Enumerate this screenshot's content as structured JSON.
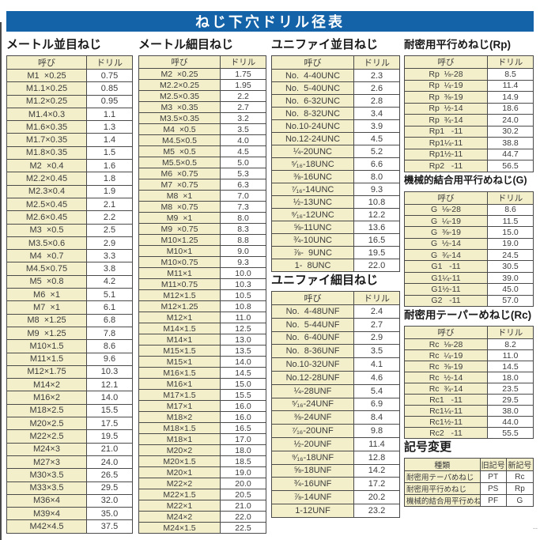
{
  "title": "ねじ下穴ドリル径表",
  "footer_mark": "--",
  "colors": {
    "title_bar_bg": "#1463a8",
    "title_text": "#ffffff",
    "cell_cream": "#f3efca",
    "cell_white": "#ffffff",
    "border": "#4a4a4a",
    "text": "#3c3c3c"
  },
  "sections": {
    "metric_coarse": {
      "title": "メートル並目ねじ",
      "headers": [
        "呼び",
        "ドリル"
      ],
      "rows": [
        [
          "M1  ×0.25",
          "0.75"
        ],
        [
          "M1.1×0.25",
          "0.85"
        ],
        [
          "M1.2×0.25",
          "0.95"
        ],
        [
          "M1.4×0.3",
          "1.1"
        ],
        [
          "M1.6×0.35",
          "1.3"
        ],
        [
          "M1.7×0.35",
          "1.4"
        ],
        [
          "M1.8×0.35",
          "1.5"
        ],
        [
          "M2  ×0.4",
          "1.6"
        ],
        [
          "M2.2×0.45",
          "1.8"
        ],
        [
          "M2.3×0.4",
          "1.9"
        ],
        [
          "M2.5×0.45",
          "2.1"
        ],
        [
          "M2.6×0.45",
          "2.2"
        ],
        [
          "M3  ×0.5",
          "2.5"
        ],
        [
          "M3.5×0.6",
          "2.9"
        ],
        [
          "M4  ×0.7",
          "3.3"
        ],
        [
          "M4.5×0.75",
          "3.8"
        ],
        [
          "M5  ×0.8",
          "4.2"
        ],
        [
          "M6  ×1",
          "5.1"
        ],
        [
          "M7  ×1",
          "6.1"
        ],
        [
          "M8  ×1.25",
          "6.8"
        ],
        [
          "M9  ×1.25",
          "7.8"
        ],
        [
          "M10×1.5",
          "8.6"
        ],
        [
          "M11×1.5",
          "9.6"
        ],
        [
          "M12×1.75",
          "10.3"
        ],
        [
          "M14×2",
          "12.1"
        ],
        [
          "M16×2",
          "14.0"
        ],
        [
          "M18×2.5",
          "15.5"
        ],
        [
          "M20×2.5",
          "17.5"
        ],
        [
          "M22×2.5",
          "19.5"
        ],
        [
          "M24×3",
          "21.0"
        ],
        [
          "M27×3",
          "24.0"
        ],
        [
          "M30×3.5",
          "26.5"
        ],
        [
          "M33×3.5",
          "29.5"
        ],
        [
          "M36×4",
          "32.0"
        ],
        [
          "M39×4",
          "35.0"
        ],
        [
          "M42×4.5",
          "37.5"
        ]
      ]
    },
    "metric_fine": {
      "title": "メートル細目ねじ",
      "headers": [
        "呼び",
        "ドリル"
      ],
      "rows": [
        [
          "M2  ×0.25",
          "1.75"
        ],
        [
          "M2.2×0.25",
          "1.95"
        ],
        [
          "M2.5×0.35",
          "2.2"
        ],
        [
          "M3  ×0.35",
          "2.7"
        ],
        [
          "M3.5×0.35",
          "3.2"
        ],
        [
          "M4  ×0.5",
          "3.5"
        ],
        [
          "M4.5×0.5",
          "4.0"
        ],
        [
          "M5  ×0.5",
          "4.5"
        ],
        [
          "M5.5×0.5",
          "5.0"
        ],
        [
          "M6  ×0.75",
          "5.3"
        ],
        [
          "M7  ×0.75",
          "6.3"
        ],
        [
          "M8  ×1",
          "7.0"
        ],
        [
          "M8  ×0.75",
          "7.3"
        ],
        [
          "M9  ×1",
          "8.0"
        ],
        [
          "M9  ×0.75",
          "8.3"
        ],
        [
          "M10×1.25",
          "8.8"
        ],
        [
          "M10×1",
          "9.0"
        ],
        [
          "M10×0.75",
          "9.3"
        ],
        [
          "M11×1",
          "10.0"
        ],
        [
          "M11×0.75",
          "10.3"
        ],
        [
          "M12×1.5",
          "10.5"
        ],
        [
          "M12×1.25",
          "10.8"
        ],
        [
          "M12×1",
          "11.0"
        ],
        [
          "M14×1.5",
          "12.5"
        ],
        [
          "M14×1",
          "13.0"
        ],
        [
          "M15×1.5",
          "13.5"
        ],
        [
          "M15×1",
          "14.0"
        ],
        [
          "M16×1.5",
          "14.5"
        ],
        [
          "M16×1",
          "15.0"
        ],
        [
          "M17×1.5",
          "15.5"
        ],
        [
          "M17×1",
          "16.0"
        ],
        [
          "M18×2",
          "16.0"
        ],
        [
          "M18×1.5",
          "16.5"
        ],
        [
          "M18×1",
          "17.0"
        ],
        [
          "M20×2",
          "18.0"
        ],
        [
          "M20×1.5",
          "18.5"
        ],
        [
          "M20×1",
          "19.0"
        ],
        [
          "M22×2",
          "20.0"
        ],
        [
          "M22×1.5",
          "20.5"
        ],
        [
          "M22×1",
          "21.0"
        ],
        [
          "M24×2",
          "22.0"
        ],
        [
          "M24×1.5",
          "22.5"
        ]
      ]
    },
    "unified_coarse": {
      "title": "ユニファイ並目ねじ",
      "headers": [
        "呼び",
        "ドリル"
      ],
      "rows": [
        [
          "No.  4-40UNC",
          "2.3"
        ],
        [
          "No.  5-40UNC",
          "2.6"
        ],
        [
          "No.  6-32UNC",
          "2.8"
        ],
        [
          "No.  8-32UNC",
          "3.4"
        ],
        [
          "No.10-24UNC",
          "3.9"
        ],
        [
          "No.12-24UNC",
          "4.5"
        ],
        [
          "¼-20UNC",
          "5.2"
        ],
        [
          "⁵⁄₁₆-18UNC",
          "6.6"
        ],
        [
          "⅜-16UNC",
          "8.0"
        ],
        [
          "⁷⁄₁₆-14UNC",
          "9.3"
        ],
        [
          "½-13UNC",
          "10.8"
        ],
        [
          "⁹⁄₁₆-12UNC",
          "12.2"
        ],
        [
          "⅝-11UNC",
          "13.6"
        ],
        [
          "¾-10UNC",
          "16.5"
        ],
        [
          "⅞-  9UNC",
          "19.5"
        ],
        [
          "1-  8UNC",
          "22.0"
        ]
      ]
    },
    "unified_fine": {
      "title": "ユニファイ細目ねじ",
      "headers": [
        "呼び",
        "ドリル"
      ],
      "rows": [
        [
          "No.  4-48UNF",
          "2.4"
        ],
        [
          "No.  5-44UNF",
          "2.7"
        ],
        [
          "No.  6-40UNF",
          "2.9"
        ],
        [
          "No.  8-36UNF",
          "3.5"
        ],
        [
          "No.10-32UNF",
          "4.1"
        ],
        [
          "No.12-28UNF",
          "4.6"
        ],
        [
          "¼-28UNF",
          "5.4"
        ],
        [
          "⁵⁄₁₆-24UNF",
          "6.9"
        ],
        [
          "⅜-24UNF",
          "8.4"
        ],
        [
          "⁷⁄₁₆-20UNF",
          "9.8"
        ],
        [
          "½-20UNF",
          "11.4"
        ],
        [
          "⁹⁄₁₆-18UNF",
          "12.8"
        ],
        [
          "⅝-18UNF",
          "14.2"
        ],
        [
          "¾-16UNF",
          "17.2"
        ],
        [
          "⅞-14UNF",
          "20.2"
        ],
        [
          "1-12UNF",
          "23.2"
        ]
      ]
    },
    "rp": {
      "title": "耐密用平行めねじ(Rp)",
      "headers": [
        "呼び",
        "ドリル"
      ],
      "rows": [
        [
          "Rp  ⅛-28",
          "8.5"
        ],
        [
          "Rp  ¼-19",
          "11.4"
        ],
        [
          "Rp  ⅜-19",
          "14.9"
        ],
        [
          "Rp  ½-14",
          "18.6"
        ],
        [
          "Rp  ¾-14",
          "24.0"
        ],
        [
          "Rp1   -11",
          "30.2"
        ],
        [
          "Rp1¼-11",
          "38.8"
        ],
        [
          "Rp1½-11",
          "44.7"
        ],
        [
          "Rp2   -11",
          "56.5"
        ]
      ]
    },
    "g": {
      "title": "機械的結合用平行めねじ(G)",
      "headers": [
        "呼び",
        "ドリル"
      ],
      "rows": [
        [
          "G  ⅛-28",
          "8.6"
        ],
        [
          "G  ¼-19",
          "11.5"
        ],
        [
          "G  ⅜-19",
          "15.0"
        ],
        [
          "G  ½-14",
          "19.0"
        ],
        [
          "G  ¾-14",
          "24.5"
        ],
        [
          "G1   -11",
          "30.5"
        ],
        [
          "G1¼-11",
          "39.0"
        ],
        [
          "G1½-11",
          "45.0"
        ],
        [
          "G2   -11",
          "57.0"
        ]
      ]
    },
    "rc": {
      "title": "耐密用テーパーめねじ(Rc)",
      "headers": [
        "呼び",
        "ドリル"
      ],
      "rows": [
        [
          "Rc  ⅛-28",
          "8.2"
        ],
        [
          "Rc  ¼-19",
          "11.0"
        ],
        [
          "Rc  ⅜-19",
          "14.5"
        ],
        [
          "Rc  ½-14",
          "18.0"
        ],
        [
          "Rc  ¾-14",
          "23.5"
        ],
        [
          "Rc1   -11",
          "29.5"
        ],
        [
          "Rc1¼-11",
          "38.0"
        ],
        [
          "Rc1½-11",
          "44.0"
        ],
        [
          "Rc2   -11",
          "55.5"
        ]
      ]
    },
    "symbol_change": {
      "title": "記号変更",
      "headers": [
        "種類",
        "旧記号",
        "新記号"
      ],
      "rows": [
        [
          "耐密用テーパめねじ",
          "PT",
          "Rc"
        ],
        [
          "耐密用平行めねじ",
          "PS",
          "Rp"
        ],
        [
          "機械的結合用平行めねじ",
          "PF",
          "G"
        ]
      ]
    }
  }
}
